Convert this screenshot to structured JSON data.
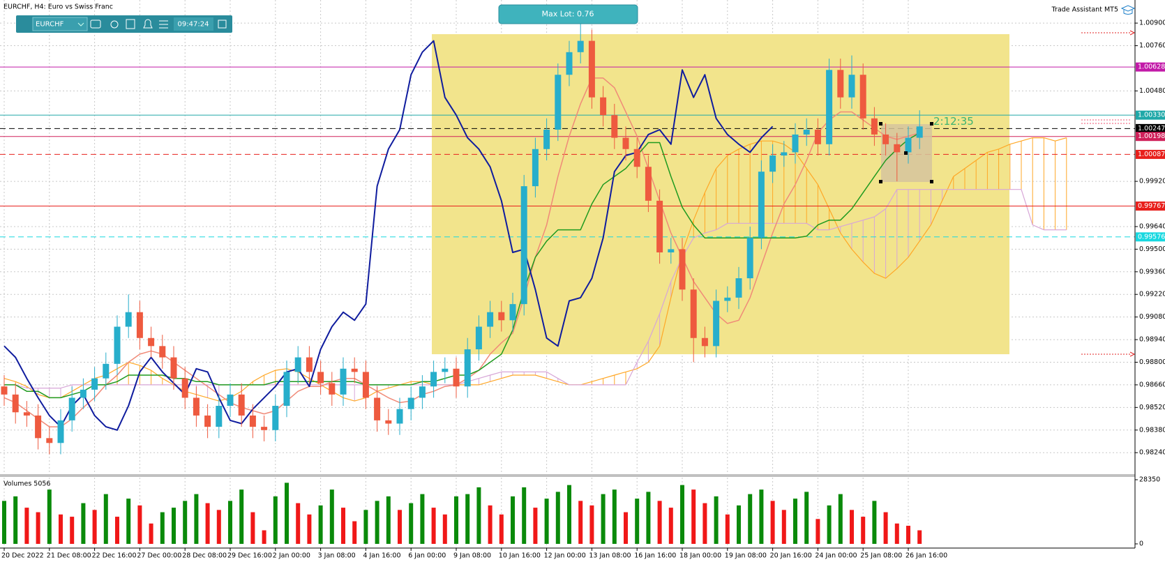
{
  "header": {
    "title": "EURCHF, H4:  Euro vs Swiss Franc",
    "button": "Max Lot: 0.76",
    "assistant": "Trade Assistant MT5",
    "countdown": "2:12:35"
  },
  "toolbar": {
    "symbol": "EURCHF",
    "time": "09:47:24"
  },
  "chart_data": {
    "type": "candlestick",
    "categories": [
      "20 Dec 2022",
      null,
      null,
      null,
      "21 Dec 08:00",
      null,
      null,
      null,
      "22 Dec 16:00",
      null,
      null,
      null,
      "27 Dec 00:00",
      null,
      null,
      null,
      "28 Dec 08:00",
      null,
      null,
      null,
      "29 Dec 16:00",
      null,
      null,
      null,
      "2 Jan 00:00",
      null,
      null,
      null,
      "3 Jan 08:00",
      null,
      null,
      null,
      "4 Jan 16:00",
      null,
      null,
      null,
      "6 Jan 00:00",
      null,
      null,
      null,
      "9 Jan 08:00",
      null,
      null,
      null,
      "10 Jan 16:00",
      null,
      null,
      null,
      "12 Jan 00:00",
      null,
      null,
      null,
      "13 Jan 08:00",
      null,
      null,
      null,
      "16 Jan 16:00",
      null,
      null,
      null,
      "18 Jan 00:00",
      null,
      null,
      null,
      "19 Jan 08:00",
      null,
      null,
      null,
      "20 Jan 16:00",
      null,
      null,
      null,
      "24 Jan 00:00",
      null,
      null,
      null,
      "25 Jan 08:00",
      null,
      null,
      null,
      "26 Jan 16:00",
      null,
      null,
      null,
      null,
      null,
      null,
      null,
      null,
      null,
      null,
      null,
      null,
      null,
      null
    ],
    "open": [
      0.9865,
      0.986,
      0.9849,
      0.9847,
      0.9833,
      0.983,
      0.9844,
      0.9858,
      0.9863,
      0.987,
      0.9879,
      0.9902,
      0.9911,
      0.9895,
      0.989,
      0.9883,
      0.987,
      0.9858,
      0.9847,
      0.984,
      0.9853,
      0.986,
      0.9847,
      0.984,
      0.9838,
      0.9853,
      0.9874,
      0.9883,
      0.9874,
      0.9867,
      0.986,
      0.9876,
      0.9874,
      0.9858,
      0.9844,
      0.9842,
      0.9851,
      0.9858,
      0.9865,
      0.9874,
      0.9876,
      0.9865,
      0.9888,
      0.9902,
      0.9911,
      0.9906,
      0.9916,
      0.9989,
      1.0012,
      1.0024,
      1.0058,
      1.0072,
      1.0079,
      1.0044,
      1.0033,
      1.0019,
      1.0012,
      1.0001,
      0.998,
      0.9948,
      0.995,
      0.9925,
      0.9895,
      0.989,
      0.9918,
      0.992,
      0.9932,
      0.9957,
      0.9998,
      1.0008,
      1.001,
      1.0021,
      1.0024,
      1.0015,
      1.0061,
      1.0044,
      1.0058,
      1.0031,
      1.0021,
      1.0015,
      1.001,
      1.0019,
      null,
      null,
      null,
      null,
      null,
      null,
      null,
      null,
      null,
      null,
      null,
      null,
      null
    ],
    "high": [
      0.9872,
      0.9867,
      0.9856,
      0.9854,
      0.984,
      0.9851,
      0.9865,
      0.987,
      0.9877,
      0.9886,
      0.9909,
      0.9922,
      0.9918,
      0.9902,
      0.9897,
      0.989,
      0.9877,
      0.9865,
      0.9854,
      0.986,
      0.9867,
      0.9867,
      0.9854,
      0.9847,
      0.986,
      0.9881,
      0.989,
      0.989,
      0.9881,
      0.9874,
      0.9883,
      0.9883,
      0.9881,
      0.9865,
      0.9851,
      0.9858,
      0.9865,
      0.9872,
      0.9881,
      0.9883,
      0.9883,
      0.9895,
      0.9909,
      0.9918,
      0.9918,
      0.9923,
      0.9996,
      1.0019,
      1.0031,
      1.0065,
      1.0079,
      1.0092,
      1.0086,
      1.0051,
      1.004,
      1.0026,
      1.0019,
      1.0008,
      0.9987,
      0.9957,
      0.9957,
      0.9932,
      0.9902,
      0.9925,
      0.9927,
      0.9939,
      0.9964,
      1.0005,
      1.0015,
      1.0017,
      1.0028,
      1.0031,
      1.0031,
      1.0068,
      1.0068,
      1.007,
      1.0065,
      1.0038,
      1.0028,
      1.0022,
      1.0026,
      1.0036,
      null,
      null,
      null,
      null,
      null,
      null,
      null,
      null,
      null,
      null,
      null,
      null,
      null
    ],
    "low": [
      0.9853,
      0.9842,
      0.984,
      0.9826,
      0.9823,
      0.9823,
      0.9837,
      0.9851,
      0.9856,
      0.9863,
      0.9872,
      0.9895,
      0.9888,
      0.9883,
      0.9876,
      0.9863,
      0.9851,
      0.984,
      0.9833,
      0.9833,
      0.9846,
      0.984,
      0.9833,
      0.9831,
      0.9831,
      0.9846,
      0.9867,
      0.9867,
      0.986,
      0.9853,
      0.9853,
      0.9867,
      0.9851,
      0.9837,
      0.9835,
      0.9835,
      0.9844,
      0.9851,
      0.9858,
      0.9867,
      0.9858,
      0.9858,
      0.9881,
      0.9895,
      0.9899,
      0.9899,
      0.9909,
      0.9982,
      1.0005,
      1.0017,
      1.0051,
      1.0065,
      1.0037,
      1.0026,
      1.0012,
      1.0005,
      0.9994,
      0.9973,
      0.9941,
      0.9941,
      0.9918,
      0.988,
      0.9883,
      0.9883,
      0.9911,
      0.9913,
      0.9925,
      0.995,
      0.9991,
      1.0001,
      1.0003,
      1.0014,
      1.0008,
      1.0008,
      1.0037,
      1.0037,
      1.0024,
      1.0014,
      1.0008,
      0.9992,
      1.0003,
      1.0012,
      null,
      null,
      null,
      null,
      null,
      null,
      null,
      null,
      null,
      null,
      null,
      null,
      null
    ],
    "close": [
      0.986,
      0.9849,
      0.9847,
      0.9833,
      0.983,
      0.9844,
      0.9858,
      0.9863,
      0.987,
      0.9879,
      0.9902,
      0.9911,
      0.9895,
      0.989,
      0.9883,
      0.987,
      0.9858,
      0.9847,
      0.984,
      0.9853,
      0.986,
      0.9847,
      0.984,
      0.9838,
      0.9853,
      0.9874,
      0.9883,
      0.9874,
      0.9867,
      0.986,
      0.9876,
      0.9874,
      0.9858,
      0.9844,
      0.9842,
      0.9851,
      0.9858,
      0.9865,
      0.9874,
      0.9876,
      0.9865,
      0.9888,
      0.9902,
      0.9911,
      0.9906,
      0.9916,
      0.9989,
      1.0012,
      1.0024,
      1.0058,
      1.0072,
      1.0079,
      1.0044,
      1.0033,
      1.0019,
      1.0012,
      1.0001,
      0.998,
      0.9948,
      0.995,
      0.9925,
      0.9895,
      0.989,
      0.9918,
      0.992,
      0.9932,
      0.9957,
      0.9998,
      1.0008,
      1.001,
      1.0021,
      1.0024,
      1.0015,
      1.0061,
      1.0044,
      1.0058,
      1.0031,
      1.0021,
      1.0015,
      1.001,
      1.0019,
      1.0026,
      null,
      null,
      null,
      null,
      null,
      null,
      null,
      null,
      null,
      null,
      null,
      null,
      null
    ],
    "up_color": "#27aecb",
    "down_color": "#ee5a3f",
    "lines": [
      {
        "color": "#f08a78",
        "width": 1.5,
        "values": [
          0.9858,
          0.9855,
          0.985,
          0.9845,
          0.984,
          0.984,
          0.9845,
          0.9852,
          0.9858,
          0.9866,
          0.9872,
          0.988,
          0.9885,
          0.9887,
          0.9885,
          0.988,
          0.9875,
          0.987,
          0.9865,
          0.986,
          0.9855,
          0.9852,
          0.985,
          0.9848,
          0.985,
          0.9856,
          0.9862,
          0.9865,
          0.9865,
          0.9868,
          0.987,
          0.987,
          0.9866,
          0.9862,
          0.9858,
          0.9855,
          0.9856,
          0.986,
          0.9862,
          0.9865,
          0.9866,
          0.987,
          0.9875,
          0.9885,
          0.9892,
          0.9898,
          0.992,
          0.9945,
          0.9965,
          0.9995,
          1.002,
          1.004,
          1.0056,
          1.0056,
          1.005,
          1.0035,
          1.002,
          1.0,
          0.998,
          0.996,
          0.9945,
          0.993,
          0.992,
          0.991,
          0.9904,
          0.9906,
          0.992,
          0.994,
          0.996,
          0.9978,
          0.999,
          1.0005,
          1.0022,
          1.003,
          1.0035,
          1.0035,
          1.003,
          1.0025,
          1.002,
          1.0018,
          1.002,
          1.0022,
          null,
          null,
          null,
          null,
          null,
          null,
          null,
          null,
          null,
          null,
          null,
          null,
          null
        ]
      },
      {
        "color": "#1f9a1f",
        "width": 1.5,
        "values": [
          0.9866,
          0.9866,
          0.9862,
          0.9862,
          0.9858,
          0.9858,
          0.986,
          0.9862,
          0.9866,
          0.9866,
          0.9868,
          0.9872,
          0.9872,
          0.9872,
          0.9872,
          0.987,
          0.987,
          0.9868,
          0.9868,
          0.9866,
          0.9866,
          0.9866,
          0.9866,
          0.9866,
          0.9868,
          0.9868,
          0.9868,
          0.9868,
          0.9868,
          0.9868,
          0.9868,
          0.9868,
          0.9866,
          0.9866,
          0.9866,
          0.9866,
          0.9866,
          0.9868,
          0.9868,
          0.987,
          0.9872,
          0.9872,
          0.9875,
          0.988,
          0.9885,
          0.99,
          0.9925,
          0.9945,
          0.9955,
          0.9962,
          0.9962,
          0.9962,
          0.9978,
          0.999,
          0.9995,
          1.0,
          1.0008,
          1.0016,
          1.0016,
          0.9995,
          0.9976,
          0.9965,
          0.9957,
          0.9957,
          0.9957,
          0.9957,
          0.9957,
          0.9957,
          0.9957,
          0.9957,
          0.9957,
          0.9958,
          0.9965,
          0.9968,
          0.9968,
          0.9975,
          0.9985,
          0.9995,
          1.0005,
          1.0012,
          1.0018,
          1.0022,
          null,
          null,
          null,
          null,
          null,
          null,
          null,
          null,
          null,
          null,
          null,
          null,
          null
        ]
      },
      {
        "color": "#0f1c9e",
        "width": 2,
        "values": [
          0.989,
          0.9883,
          0.987,
          0.9858,
          0.9847,
          0.984,
          0.9853,
          0.986,
          0.9847,
          0.984,
          0.9838,
          0.9853,
          0.9874,
          0.9883,
          0.9874,
          0.9867,
          0.986,
          0.9876,
          0.9874,
          0.9858,
          0.9844,
          0.9842,
          0.9851,
          0.9858,
          0.9865,
          0.9874,
          0.9876,
          0.9865,
          0.9888,
          0.9902,
          0.9911,
          0.9906,
          0.9916,
          0.9989,
          1.0012,
          1.0024,
          1.0058,
          1.0072,
          1.0079,
          1.0044,
          1.0033,
          1.0019,
          1.0012,
          1.0001,
          0.998,
          0.9948,
          0.995,
          0.9925,
          0.9895,
          0.989,
          0.9918,
          0.992,
          0.9932,
          0.9957,
          0.9998,
          1.0008,
          1.001,
          1.0021,
          1.0024,
          1.0015,
          1.0061,
          1.0044,
          1.0058,
          1.0031,
          1.0021,
          1.0015,
          1.001,
          1.0019,
          1.0026,
          null,
          null,
          null,
          null,
          null,
          null,
          null,
          null,
          null,
          null,
          null,
          null,
          null,
          null,
          null,
          null,
          null,
          null,
          null,
          null,
          null,
          null,
          null,
          null,
          null,
          null
        ]
      }
    ],
    "cloud": {
      "up_color": "#ffa726",
      "down_color": "#d7a6d7",
      "span_a": {
        "color": "#ffa726",
        "values": [
          0.987,
          0.9868,
          0.9865,
          0.986,
          0.9858,
          0.9858,
          0.9862,
          0.9866,
          0.987,
          0.9872,
          0.9876,
          0.988,
          0.9878,
          0.9875,
          0.987,
          0.9866,
          0.9862,
          0.986,
          0.9858,
          0.9856,
          0.9858,
          0.9862,
          0.9868,
          0.9872,
          0.9875,
          0.9876,
          0.9874,
          0.987,
          0.9866,
          0.9862,
          0.9858,
          0.9856,
          0.9858,
          0.9862,
          0.9864,
          0.9866,
          0.9868,
          0.9868,
          0.9866,
          0.9866,
          0.9866,
          0.9866,
          0.9866,
          0.9868,
          0.987,
          0.9872,
          0.9872,
          0.9872,
          0.987,
          0.9868,
          0.9866,
          0.9866,
          0.9868,
          0.987,
          0.9872,
          0.9874,
          0.9876,
          0.988,
          0.989,
          0.992,
          0.9948,
          0.9968,
          0.9985,
          1.0,
          1.0008,
          1.0012,
          1.0015,
          1.0017,
          1.0017,
          1.0015,
          1.001,
          1.0,
          0.999,
          0.9975,
          0.996,
          0.995,
          0.9942,
          0.9935,
          0.9932,
          0.9938,
          0.9945,
          0.9955,
          0.9965,
          0.998,
          0.9995,
          1.0,
          1.0005,
          1.001,
          1.0012,
          1.0015,
          1.0017,
          1.0019,
          1.0019,
          1.0017,
          1.0019
        ]
      },
      "span_b": {
        "color": "#d7a6d7",
        "values": [
          0.9866,
          0.9866,
          0.9864,
          0.9864,
          0.9864,
          0.9864,
          0.9866,
          0.9866,
          0.9866,
          0.9866,
          0.9866,
          0.9866,
          0.9866,
          0.9866,
          0.9866,
          0.9866,
          0.9866,
          0.9866,
          0.9866,
          0.9866,
          0.9866,
          0.9866,
          0.9866,
          0.9866,
          0.9866,
          0.9866,
          0.9866,
          0.9866,
          0.9866,
          0.9866,
          0.9866,
          0.9866,
          0.9866,
          0.9866,
          0.9866,
          0.9866,
          0.9866,
          0.9866,
          0.9866,
          0.9866,
          0.9866,
          0.9868,
          0.987,
          0.9872,
          0.9874,
          0.9874,
          0.9874,
          0.9874,
          0.9874,
          0.987,
          0.9866,
          0.9866,
          0.9866,
          0.9866,
          0.9866,
          0.9866,
          0.988,
          0.9893,
          0.991,
          0.993,
          0.9945,
          0.9957,
          0.996,
          0.9962,
          0.9966,
          0.9966,
          0.9966,
          0.9966,
          0.9966,
          0.9966,
          0.9966,
          0.9966,
          0.9962,
          0.9962,
          0.9964,
          0.9966,
          0.9968,
          0.997,
          0.9975,
          0.9987,
          0.9987,
          0.9987,
          0.9987,
          0.9987,
          0.9987,
          0.9987,
          0.9987,
          0.9987,
          0.9987,
          0.9987,
          0.9987,
          0.9965,
          0.9962,
          0.9962,
          0.9962
        ]
      }
    },
    "levels": [
      {
        "value": 1.00628,
        "color": "#c21aa8",
        "style": "solid"
      },
      {
        "value": 1.0033,
        "label": "1.00330",
        "color": "#1fa8a8",
        "style": "solid"
      },
      {
        "value": 1.00247,
        "color": "#000000",
        "style": "dashed"
      },
      {
        "value": 1.00198,
        "color": "#d0205a",
        "style": "solid"
      },
      {
        "value": 1.00087,
        "color": "#e8201c",
        "style": "dashed"
      },
      {
        "value": 0.99767,
        "color": "#e8201c",
        "style": "solid"
      },
      {
        "value": 0.99576,
        "color": "#18d8e0",
        "style": "dashed"
      }
    ],
    "ylim": [
      0.98107,
      1.01043
    ],
    "yticks": [
      {
        "value": 1.009,
        "label": "1.00900"
      },
      {
        "value": 1.0076,
        "label": "1.00760"
      },
      {
        "value": 1.0048,
        "label": "1.00480"
      },
      {
        "value": 0.9992,
        "label": "0.99920"
      },
      {
        "value": 0.9964,
        "label": "0.99640"
      },
      {
        "value": 0.995,
        "label": "0.99500"
      },
      {
        "value": 0.9936,
        "label": "0.99360"
      },
      {
        "value": 0.9922,
        "label": "0.99220"
      },
      {
        "value": 0.9908,
        "label": "0.99080"
      },
      {
        "value": 0.9894,
        "label": "0.98940"
      },
      {
        "value": 0.988,
        "label": "0.98800"
      },
      {
        "value": 0.9866,
        "label": "0.98660"
      },
      {
        "value": 0.9852,
        "label": "0.98520"
      },
      {
        "value": 0.9838,
        "label": "0.98380"
      },
      {
        "value": 0.9824,
        "label": "0.98240"
      }
    ],
    "grid": true,
    "volumes": {
      "label": "Volumes 5056",
      "up_color": "#0a8a0a",
      "down_color": "#f01818",
      "ylim": [
        0,
        28350
      ],
      "yticks": [
        0,
        28350
      ],
      "values": [
        19000,
        21000,
        16000,
        14000,
        24000,
        13000,
        12000,
        18000,
        15000,
        22000,
        12000,
        20000,
        17000,
        9000,
        14000,
        16000,
        19000,
        22000,
        18000,
        15000,
        19000,
        24000,
        14000,
        6000,
        21000,
        27000,
        18000,
        13000,
        17000,
        24000,
        16000,
        10000,
        15000,
        19000,
        21000,
        15000,
        18000,
        22000,
        16000,
        13000,
        21000,
        22000,
        25000,
        17000,
        13000,
        21000,
        25000,
        16000,
        20000,
        23000,
        26000,
        19000,
        17000,
        22000,
        24000,
        14000,
        20000,
        23000,
        19000,
        16000,
        26000,
        24000,
        18000,
        21000,
        13000,
        17000,
        22000,
        24000,
        19000,
        15000,
        20000,
        23000,
        11000,
        17000,
        22000,
        15000,
        12000,
        19000,
        14000,
        9000,
        8000,
        6000,
        null,
        null,
        null,
        null,
        null,
        null,
        null,
        null,
        null,
        null,
        null,
        null,
        null
      ]
    }
  }
}
